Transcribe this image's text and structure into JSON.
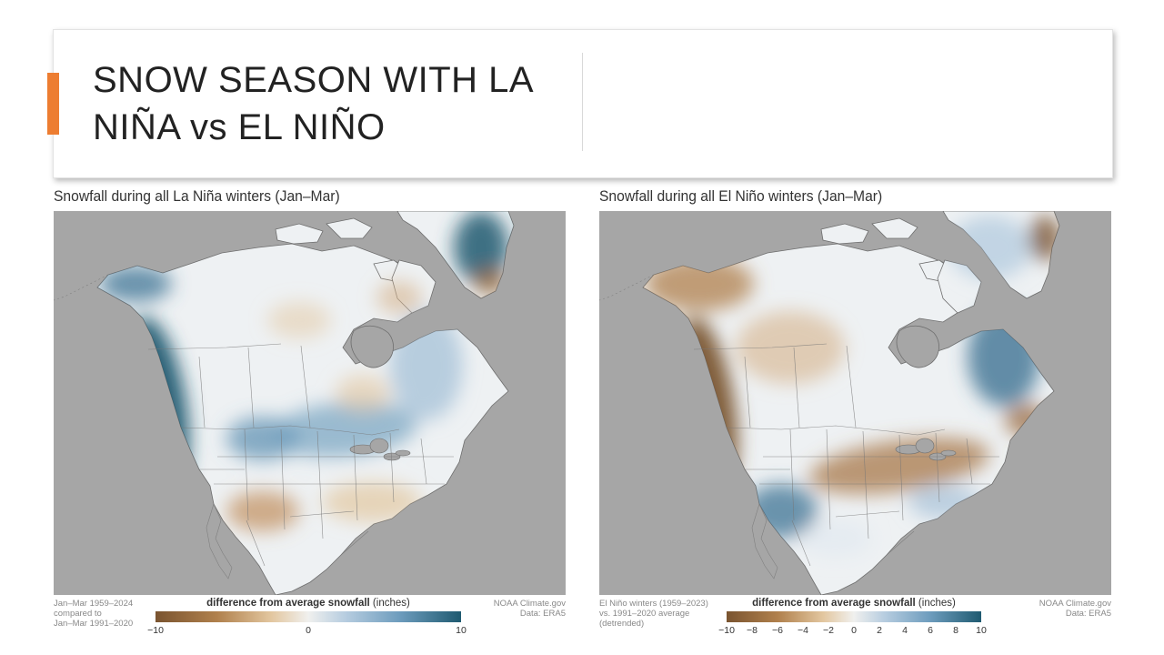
{
  "slide": {
    "title_line1": "SNOW SEASON WITH LA",
    "title_line2": "NIÑA vs EL NIÑO"
  },
  "colors": {
    "accent": "#ed7d31",
    "ocean": "#a6a6a6",
    "scale_low": "#7a5430",
    "scale_mid": "#f0f0ee",
    "scale_high": "#1f5a70"
  },
  "maps": [
    {
      "title": "Snowfall during all La Niña winters (Jan–Mar)",
      "note_left": [
        "Jan–Mar 1959–2024",
        "compared to",
        "Jan–Mar 1991–2020"
      ],
      "note_right": [
        "NOAA Climate.gov",
        "Data: ERA5"
      ],
      "legend_title_bold": "difference from average snowfall",
      "legend_units": " (inches)",
      "ticks": [
        "−10",
        "0",
        "10"
      ],
      "tick_values": [
        -10,
        0,
        10
      ],
      "pattern": "la-nina"
    },
    {
      "title": "Snowfall during all El Niño winters (Jan–Mar)",
      "note_left": [
        "El Niño winters (1959–2023)",
        "vs. 1991–2020 average",
        "(detrended)"
      ],
      "note_right": [
        "NOAA Climate.gov",
        "Data: ERA5"
      ],
      "legend_title_bold": "difference from average snowfall",
      "legend_units": " (inches)",
      "ticks": [
        "−10",
        "−8",
        "−6",
        "−4",
        "−2",
        "0",
        "2",
        "4",
        "6",
        "8",
        "10"
      ],
      "tick_values": [
        -10,
        -8,
        -6,
        -4,
        -2,
        0,
        2,
        4,
        6,
        8,
        10
      ],
      "pattern": "el-nino"
    }
  ]
}
